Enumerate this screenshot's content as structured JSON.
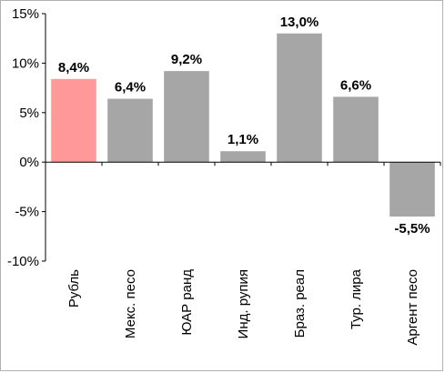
{
  "chart_data": {
    "type": "bar",
    "categories": [
      "Рубль",
      "Мекс. песо",
      "ЮАР ранд",
      "Инд. рупия",
      "Браз. реал",
      "Тур. лира",
      "Аргент песо"
    ],
    "values": [
      8.4,
      6.4,
      9.2,
      1.1,
      13.0,
      6.6,
      -5.5
    ],
    "data_labels": [
      "8,4%",
      "6,4%",
      "9,2%",
      "1,1%",
      "13,0%",
      "6,6%",
      "-5,5%"
    ],
    "colors": [
      "#ff9999",
      "#a6a6a6",
      "#a6a6a6",
      "#a6a6a6",
      "#a6a6a6",
      "#a6a6a6",
      "#a6a6a6"
    ],
    "highlight_color": "#ff9999",
    "bar_color": "#a6a6a6",
    "ylim": [
      -10,
      15
    ],
    "yticks": [
      15,
      10,
      5,
      0,
      -5,
      -10
    ],
    "ytick_labels": [
      "15%",
      "10%",
      "5%",
      "0%",
      "-5%",
      "-10%"
    ],
    "title": "",
    "xlabel": "",
    "ylabel": "",
    "grid": false,
    "legend": "none"
  }
}
